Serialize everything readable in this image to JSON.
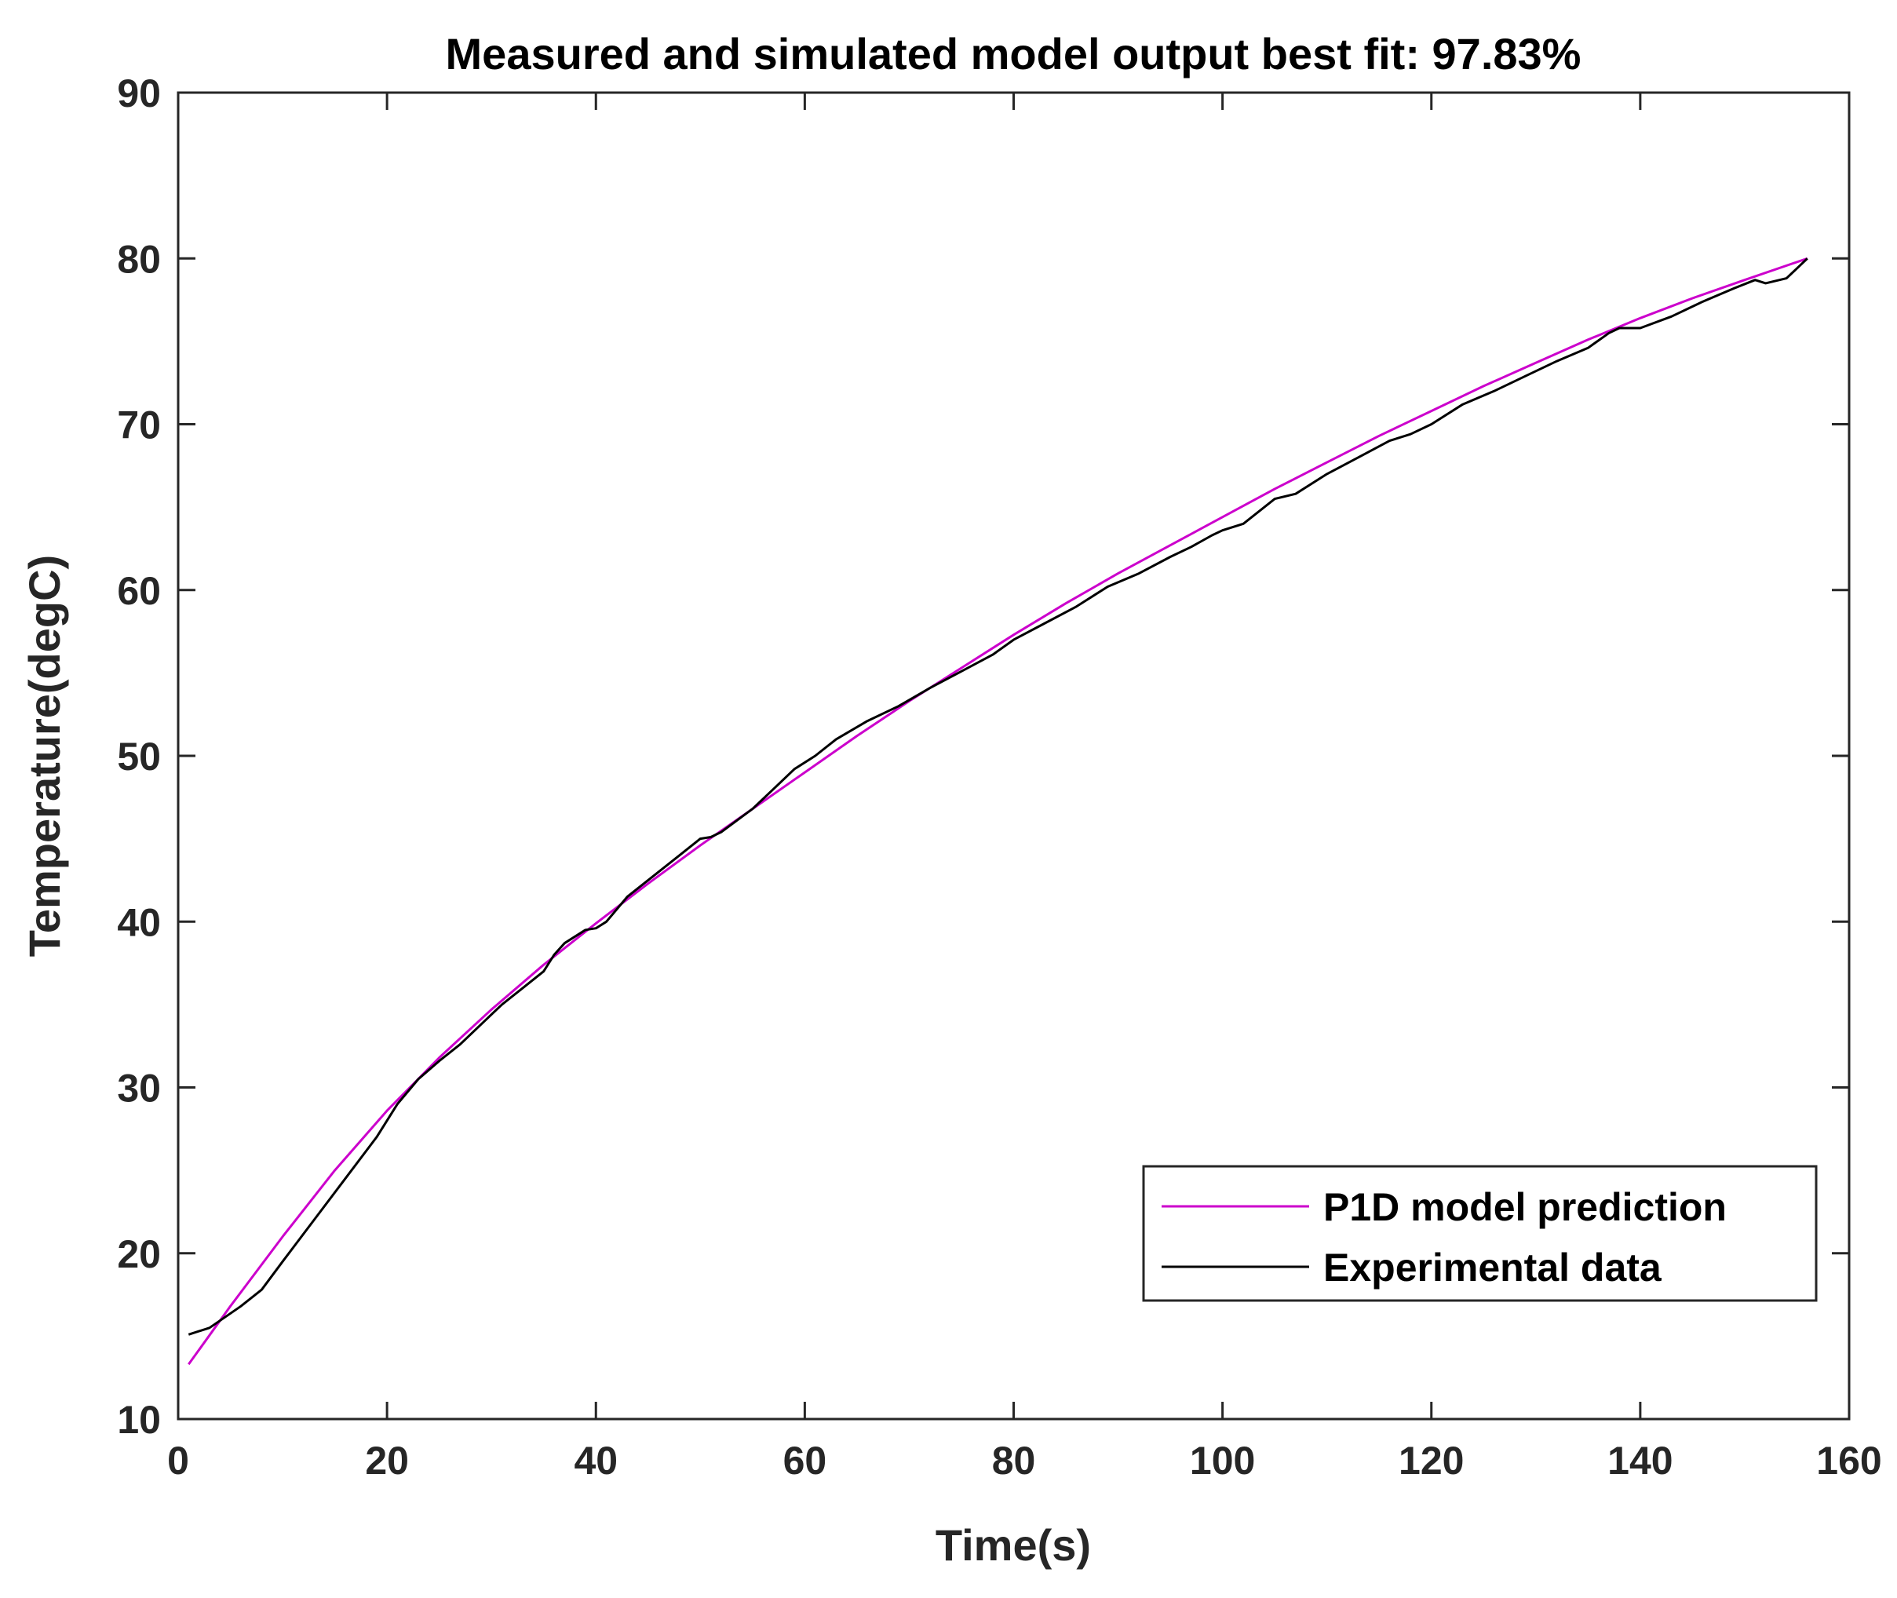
{
  "chart_data": {
    "type": "line",
    "title": "Measured and simulated model output best fit: 97.83%",
    "xlabel": "Time(s)",
    "ylabel": "Temperature(degC)",
    "xlim": [
      0,
      160
    ],
    "ylim": [
      10,
      90
    ],
    "xticks": [
      0,
      20,
      40,
      60,
      80,
      100,
      120,
      140,
      160
    ],
    "yticks": [
      10,
      20,
      30,
      40,
      50,
      60,
      70,
      80,
      90
    ],
    "grid": false,
    "legend_position": "bottom-right",
    "series": [
      {
        "name": "P1D model prediction",
        "color": "#cc00cc",
        "x": [
          1,
          5,
          10,
          15,
          20,
          25,
          30,
          35,
          40,
          45,
          50,
          55,
          60,
          65,
          70,
          75,
          80,
          85,
          90,
          95,
          100,
          105,
          110,
          115,
          120,
          125,
          130,
          135,
          140,
          145,
          150,
          156
        ],
        "y": [
          13.3,
          16.8,
          21.0,
          25.0,
          28.6,
          31.8,
          34.7,
          37.4,
          39.9,
          42.3,
          44.6,
          46.8,
          49.0,
          51.2,
          53.3,
          55.3,
          57.3,
          59.2,
          61.0,
          62.7,
          64.4,
          66.1,
          67.7,
          69.3,
          70.8,
          72.3,
          73.7,
          75.1,
          76.4,
          77.6,
          78.7,
          80.0
        ]
      },
      {
        "name": "Experimental data",
        "color": "#000000",
        "x": [
          1,
          3,
          6,
          8,
          10,
          13,
          16,
          19,
          21,
          23,
          25,
          27,
          29,
          31,
          33,
          35,
          36,
          37,
          39,
          40,
          41,
          43,
          45,
          48,
          50,
          51,
          52,
          55,
          57,
          59,
          61,
          63,
          66,
          69,
          72,
          75,
          78,
          80,
          83,
          86,
          89,
          92,
          95,
          97,
          99,
          100,
          102,
          105,
          107,
          110,
          113,
          116,
          118,
          120,
          123,
          126,
          129,
          132,
          135,
          137,
          138,
          140,
          143,
          146,
          149,
          151,
          152,
          154,
          156
        ],
        "y": [
          15.1,
          15.5,
          16.8,
          17.8,
          19.5,
          22.0,
          24.5,
          27.0,
          29.0,
          30.5,
          31.6,
          32.6,
          33.8,
          35.0,
          36.0,
          37.0,
          38.0,
          38.7,
          39.5,
          39.6,
          40.0,
          41.5,
          42.5,
          44.0,
          45.0,
          45.1,
          45.4,
          46.8,
          48.0,
          49.2,
          50.0,
          51.0,
          52.1,
          53.0,
          54.1,
          55.1,
          56.1,
          57.0,
          58.0,
          59.0,
          60.2,
          61.0,
          62.0,
          62.6,
          63.3,
          63.6,
          64.0,
          65.5,
          65.8,
          67.0,
          68.0,
          69.0,
          69.4,
          70.0,
          71.2,
          72.0,
          72.9,
          73.8,
          74.6,
          75.5,
          75.8,
          75.8,
          76.5,
          77.4,
          78.2,
          78.7,
          78.5,
          78.8,
          80.0
        ]
      }
    ]
  }
}
